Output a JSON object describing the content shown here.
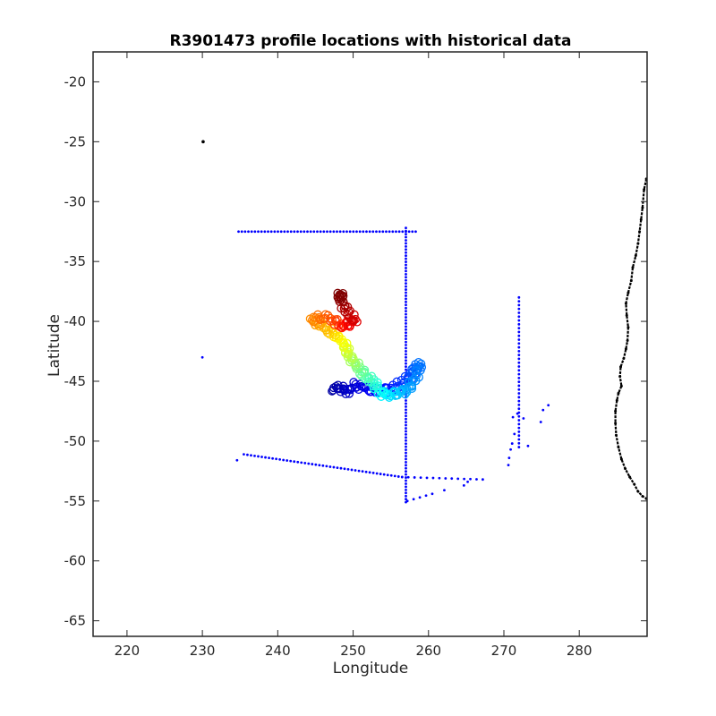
{
  "chart_data": {
    "type": "scatter",
    "title": "R3901473 profile locations with historical data",
    "xlabel": "Longitude",
    "ylabel": "Latitude",
    "xlim": [
      215.5,
      289
    ],
    "ylim": [
      -66.3,
      -17.5
    ],
    "xticks": [
      220,
      230,
      240,
      250,
      260,
      270,
      280
    ],
    "yticks": [
      -20,
      -25,
      -30,
      -35,
      -40,
      -45,
      -50,
      -55,
      -60,
      -65
    ],
    "grid": false,
    "legend": "none",
    "colors": {
      "historical": "#0000ff",
      "coastline": "#000000",
      "profile_colormap": [
        "#00008f",
        "#0000ff",
        "#0080ff",
        "#00ffff",
        "#80ff80",
        "#ffff00",
        "#ff8000",
        "#ff0000",
        "#800000"
      ]
    },
    "series": [
      {
        "role": "historical",
        "marker": "dot",
        "segments": [
          {
            "from": [
              234.8,
              -32.5
            ],
            "to": [
              258.3,
              -32.5
            ],
            "n": 55
          },
          {
            "from": [
              257.0,
              -32.2
            ],
            "to": [
              257.0,
              -55.1
            ],
            "n": 90
          },
          {
            "from": [
              235.5,
              -51.1
            ],
            "to": [
              256.5,
              -53.0
            ],
            "n": 45
          },
          {
            "from": [
              256.5,
              -53.0
            ],
            "to": [
              267.2,
              -53.2
            ],
            "n": 14
          },
          {
            "from": [
              272.0,
              -38.0
            ],
            "to": [
              272.0,
              -50.5
            ],
            "n": 40
          },
          {
            "from": [
              257.2,
              -55.0
            ],
            "to": [
              260.5,
              -54.4
            ],
            "n": 5
          }
        ],
        "points": [
          [
            230.0,
            -43.0
          ],
          [
            234.6,
            -51.6
          ],
          [
            270.6,
            -52.0
          ],
          [
            270.7,
            -51.4
          ],
          [
            270.9,
            -50.7
          ],
          [
            271.1,
            -50.2
          ],
          [
            271.4,
            -49.4
          ],
          [
            271.2,
            -48.0
          ],
          [
            271.8,
            -47.7
          ],
          [
            272.6,
            -48.1
          ],
          [
            273.2,
            -50.4
          ],
          [
            274.9,
            -48.4
          ],
          [
            275.2,
            -47.4
          ],
          [
            275.9,
            -47.0
          ],
          [
            262.1,
            -54.1
          ],
          [
            264.7,
            -53.7
          ],
          [
            265.2,
            -53.4
          ]
        ]
      },
      {
        "role": "coastline",
        "points": [
          [
            230.1,
            -25.0
          ],
          [
            288.9,
            -28.1
          ],
          [
            288.6,
            -29.0
          ],
          [
            288.4,
            -30.5
          ],
          [
            288.2,
            -31.5
          ],
          [
            288.0,
            -32.5
          ],
          [
            287.8,
            -33.5
          ],
          [
            287.5,
            -34.5
          ],
          [
            287.1,
            -35.5
          ],
          [
            286.9,
            -36.6
          ],
          [
            286.5,
            -37.6
          ],
          [
            286.2,
            -38.5
          ],
          [
            286.3,
            -39.5
          ],
          [
            286.5,
            -40.5
          ],
          [
            286.4,
            -41.6
          ],
          [
            286.2,
            -42.3
          ],
          [
            285.9,
            -43.1
          ],
          [
            285.5,
            -43.8
          ],
          [
            285.4,
            -44.6
          ],
          [
            285.6,
            -45.4
          ],
          [
            285.2,
            -46.0
          ],
          [
            285.0,
            -46.6
          ],
          [
            284.8,
            -47.5
          ],
          [
            284.8,
            -48.5
          ],
          [
            284.9,
            -49.5
          ],
          [
            285.2,
            -50.5
          ],
          [
            285.6,
            -51.5
          ],
          [
            286.1,
            -52.3
          ],
          [
            286.7,
            -53.0
          ],
          [
            287.3,
            -53.6
          ],
          [
            287.8,
            -54.2
          ],
          [
            288.4,
            -54.6
          ],
          [
            288.9,
            -54.8
          ]
        ]
      },
      {
        "role": "profiles",
        "marker": "o",
        "comment_free": true,
        "points": [
          [
            247.2,
            -45.6,
            0.02
          ],
          [
            248.3,
            -45.5,
            0.04
          ],
          [
            249.2,
            -45.9,
            0.06
          ],
          [
            250.4,
            -45.3,
            0.08
          ],
          [
            251.6,
            -45.6,
            0.1
          ],
          [
            252.9,
            -45.8,
            0.12
          ],
          [
            254.3,
            -45.7,
            0.14
          ],
          [
            255.8,
            -45.4,
            0.16
          ],
          [
            257.0,
            -44.9,
            0.18
          ],
          [
            257.8,
            -44.4,
            0.2
          ],
          [
            258.4,
            -43.9,
            0.22
          ],
          [
            258.9,
            -43.6,
            0.24
          ],
          [
            258.2,
            -44.8,
            0.26
          ],
          [
            257.4,
            -45.6,
            0.28
          ],
          [
            256.4,
            -45.9,
            0.3
          ],
          [
            255.4,
            -46.1,
            0.33
          ],
          [
            254.3,
            -46.2,
            0.36
          ],
          [
            253.3,
            -45.7,
            0.39
          ],
          [
            252.6,
            -45.0,
            0.42
          ],
          [
            251.8,
            -44.6,
            0.45
          ],
          [
            251.0,
            -44.1,
            0.48
          ],
          [
            250.2,
            -43.5,
            0.52
          ],
          [
            249.6,
            -43.0,
            0.55
          ],
          [
            249.1,
            -42.4,
            0.58
          ],
          [
            248.8,
            -41.8,
            0.61
          ],
          [
            247.8,
            -41.2,
            0.64
          ],
          [
            246.8,
            -40.8,
            0.68
          ],
          [
            245.6,
            -40.3,
            0.71
          ],
          [
            244.5,
            -39.9,
            0.74
          ],
          [
            245.8,
            -39.6,
            0.77
          ],
          [
            247.3,
            -39.8,
            0.8
          ],
          [
            248.4,
            -40.4,
            0.84
          ],
          [
            249.4,
            -40.2,
            0.88
          ],
          [
            250.3,
            -40.0,
            0.91
          ],
          [
            249.2,
            -39.2,
            0.94
          ],
          [
            248.6,
            -38.5,
            0.97
          ],
          [
            248.3,
            -37.8,
            1.0
          ]
        ]
      }
    ]
  }
}
